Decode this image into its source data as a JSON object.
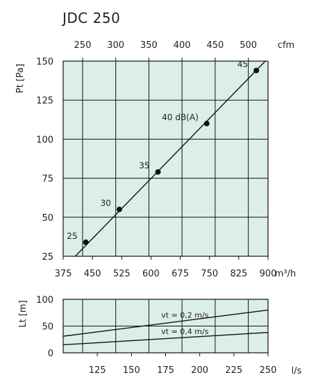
{
  "title": "JDC 250",
  "colors": {
    "plot_bg": "#dceee9",
    "line": "#111111",
    "grid": "#111111"
  },
  "chart_data": [
    {
      "type": "line",
      "title": "JDC 250",
      "xlabel": "m³/h",
      "ylabel": "Pt [Pa]",
      "xlim": [
        375,
        900
      ],
      "ylim": [
        25,
        150
      ],
      "grid": true,
      "x_ticks": [
        375,
        450,
        525,
        600,
        675,
        750,
        825,
        900
      ],
      "y_ticks": [
        25,
        50,
        75,
        100,
        125,
        150
      ],
      "top_axis": {
        "label": "cfm",
        "ticks": [
          250,
          300,
          350,
          400,
          450,
          500
        ]
      },
      "series": [
        {
          "x": [
            406,
            893
          ],
          "y": [
            25,
            150
          ]
        }
      ],
      "markers": [
        {
          "label": "25",
          "x": 433,
          "y": 34
        },
        {
          "label": "30",
          "x": 519,
          "y": 55
        },
        {
          "label": "35",
          "x": 618,
          "y": 79
        },
        {
          "label": "40 dB(A)",
          "x": 743,
          "y": 110
        },
        {
          "label": "45",
          "x": 870,
          "y": 144
        }
      ]
    },
    {
      "type": "line",
      "xlabel": "l/s",
      "ylabel": "Lt [m]",
      "xlim": [
        100,
        250
      ],
      "ylim": [
        0,
        100
      ],
      "grid": true,
      "x_ticks": [
        125,
        150,
        175,
        200,
        225,
        250
      ],
      "y_ticks": [
        0,
        50,
        100
      ],
      "series": [
        {
          "name": "vt = 0,2 m/s",
          "x": [
            100,
            250
          ],
          "y": [
            31,
            80
          ]
        },
        {
          "name": "vt = 0,4 m/s",
          "x": [
            100,
            250
          ],
          "y": [
            15,
            38
          ]
        }
      ]
    }
  ]
}
